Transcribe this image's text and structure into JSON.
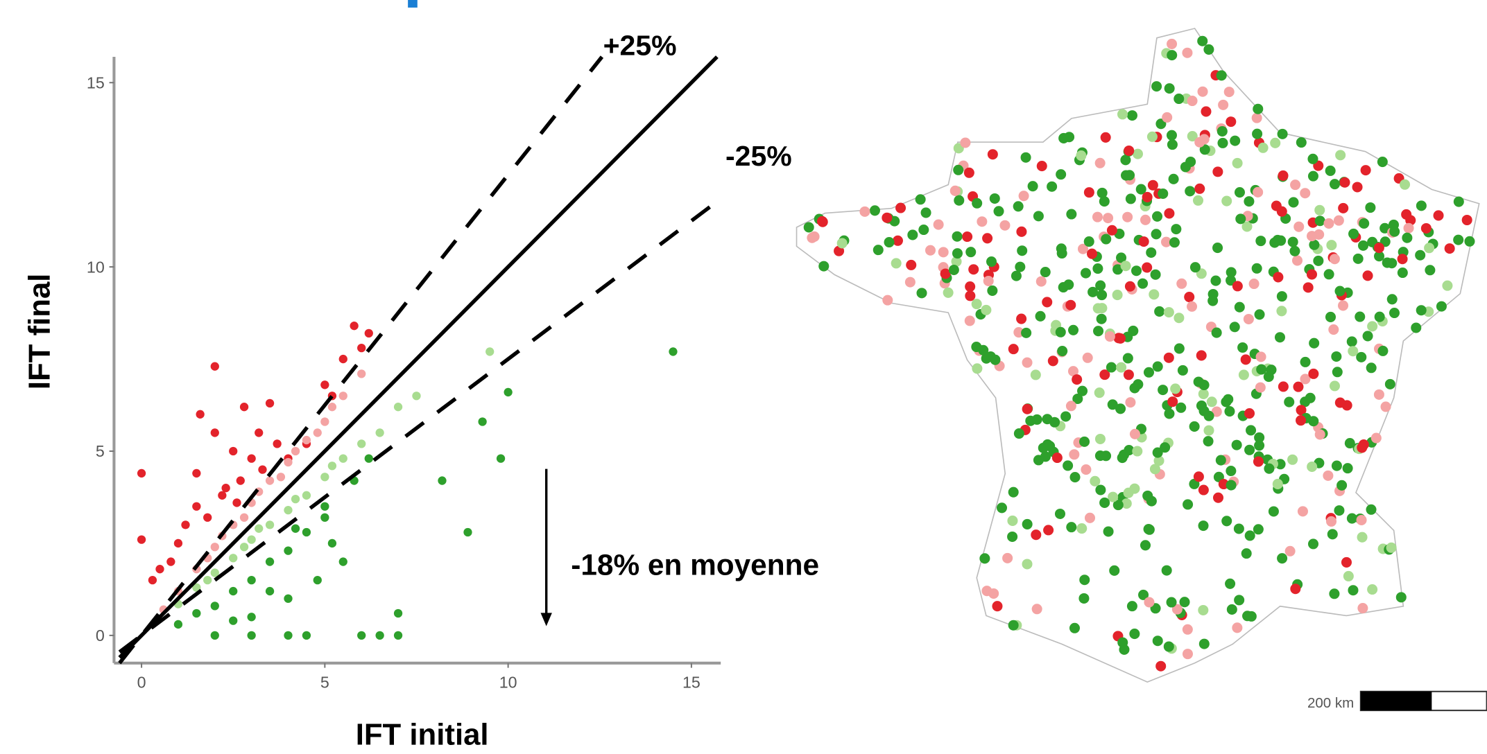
{
  "chart_data": {
    "type": "scatter",
    "xlabel": "IFT initial",
    "ylabel": "IFT final",
    "xlim": [
      -0.75,
      15.8
    ],
    "ylim": [
      -0.75,
      15.7
    ],
    "xticks": [
      0,
      5,
      10,
      15
    ],
    "yticks": [
      0,
      5,
      10,
      15
    ],
    "reference_lines": [
      {
        "slope": 1,
        "style": "solid"
      },
      {
        "slope": 1.25,
        "style": "dashed",
        "label": "+25%"
      },
      {
        "slope": 0.75,
        "style": "dashed",
        "label": "-25%"
      }
    ],
    "annotation": "-18% en moyenne",
    "series": [
      {
        "color": "#e3232b",
        "x": [
          0,
          0,
          0.3,
          0.5,
          1,
          1.5,
          1.5,
          2,
          1.6,
          2,
          2.3,
          2.5,
          2.8,
          3,
          3.2,
          3.5,
          3.7,
          4,
          4.5,
          5.2,
          5.5,
          5.8,
          6,
          1.2,
          0.8,
          2.2,
          2.7,
          3.3,
          1.8,
          2.6,
          5,
          6.2
        ],
        "y": [
          4.4,
          2.6,
          1.5,
          1.8,
          2.5,
          3.5,
          4.4,
          7.3,
          6,
          5.5,
          4,
          5,
          6.2,
          4.8,
          5.5,
          6.3,
          5.2,
          4.8,
          5.2,
          6.5,
          7.5,
          8.4,
          7.8,
          3,
          2,
          3.8,
          4.2,
          4.5,
          3.2,
          3.6,
          6.8,
          8.2
        ]
      },
      {
        "color": "#f4a3a3",
        "x": [
          1,
          1.5,
          2,
          2.5,
          3,
          3.5,
          4,
          4.5,
          5,
          5.5,
          6,
          1.8,
          2.8,
          3.8,
          4.8,
          2.2,
          3.2,
          4.2,
          0.6,
          5.2
        ],
        "y": [
          1.2,
          1.8,
          2.4,
          3,
          3.6,
          4.2,
          4.7,
          5.3,
          5.8,
          6.5,
          7.1,
          2.1,
          3.2,
          4.3,
          5.5,
          2.7,
          3.9,
          5,
          0.7,
          6.2
        ]
      },
      {
        "color": "#a8dc90",
        "x": [
          1,
          1.5,
          2,
          2.5,
          3,
          3.5,
          4,
          4.5,
          5,
          5.5,
          6,
          6.5,
          7,
          7.5,
          9.5,
          3.2,
          4.2,
          5.2,
          2.8,
          1.8
        ],
        "y": [
          0.85,
          1.3,
          1.7,
          2.1,
          2.6,
          3,
          3.4,
          3.8,
          4.3,
          4.8,
          5.2,
          5.5,
          6.2,
          6.5,
          7.7,
          2.9,
          3.7,
          4.6,
          2.4,
          1.5
        ]
      },
      {
        "color": "#2ea02c",
        "x": [
          1,
          1.5,
          2,
          2.5,
          3,
          3.5,
          4,
          4.5,
          5,
          5,
          4,
          3,
          2,
          3,
          4,
          4.5,
          6,
          6.5,
          7,
          7,
          5.5,
          4.8,
          5.8,
          6.2,
          8.2,
          9.3,
          10,
          8.9,
          9.8,
          14.5,
          3.5,
          2.5,
          4.2,
          5.2
        ],
        "y": [
          0.3,
          0.6,
          0.8,
          1.2,
          1.5,
          2,
          2.3,
          2.8,
          3.2,
          3.5,
          1,
          0.5,
          0,
          0,
          0,
          0,
          0,
          0,
          0,
          0.6,
          2,
          1.5,
          4.2,
          4.8,
          4.2,
          5.8,
          6.6,
          2.8,
          4.8,
          7.7,
          1.2,
          0.4,
          2.9,
          2.5
        ]
      }
    ]
  },
  "map": {
    "scale_label": "200 km"
  }
}
